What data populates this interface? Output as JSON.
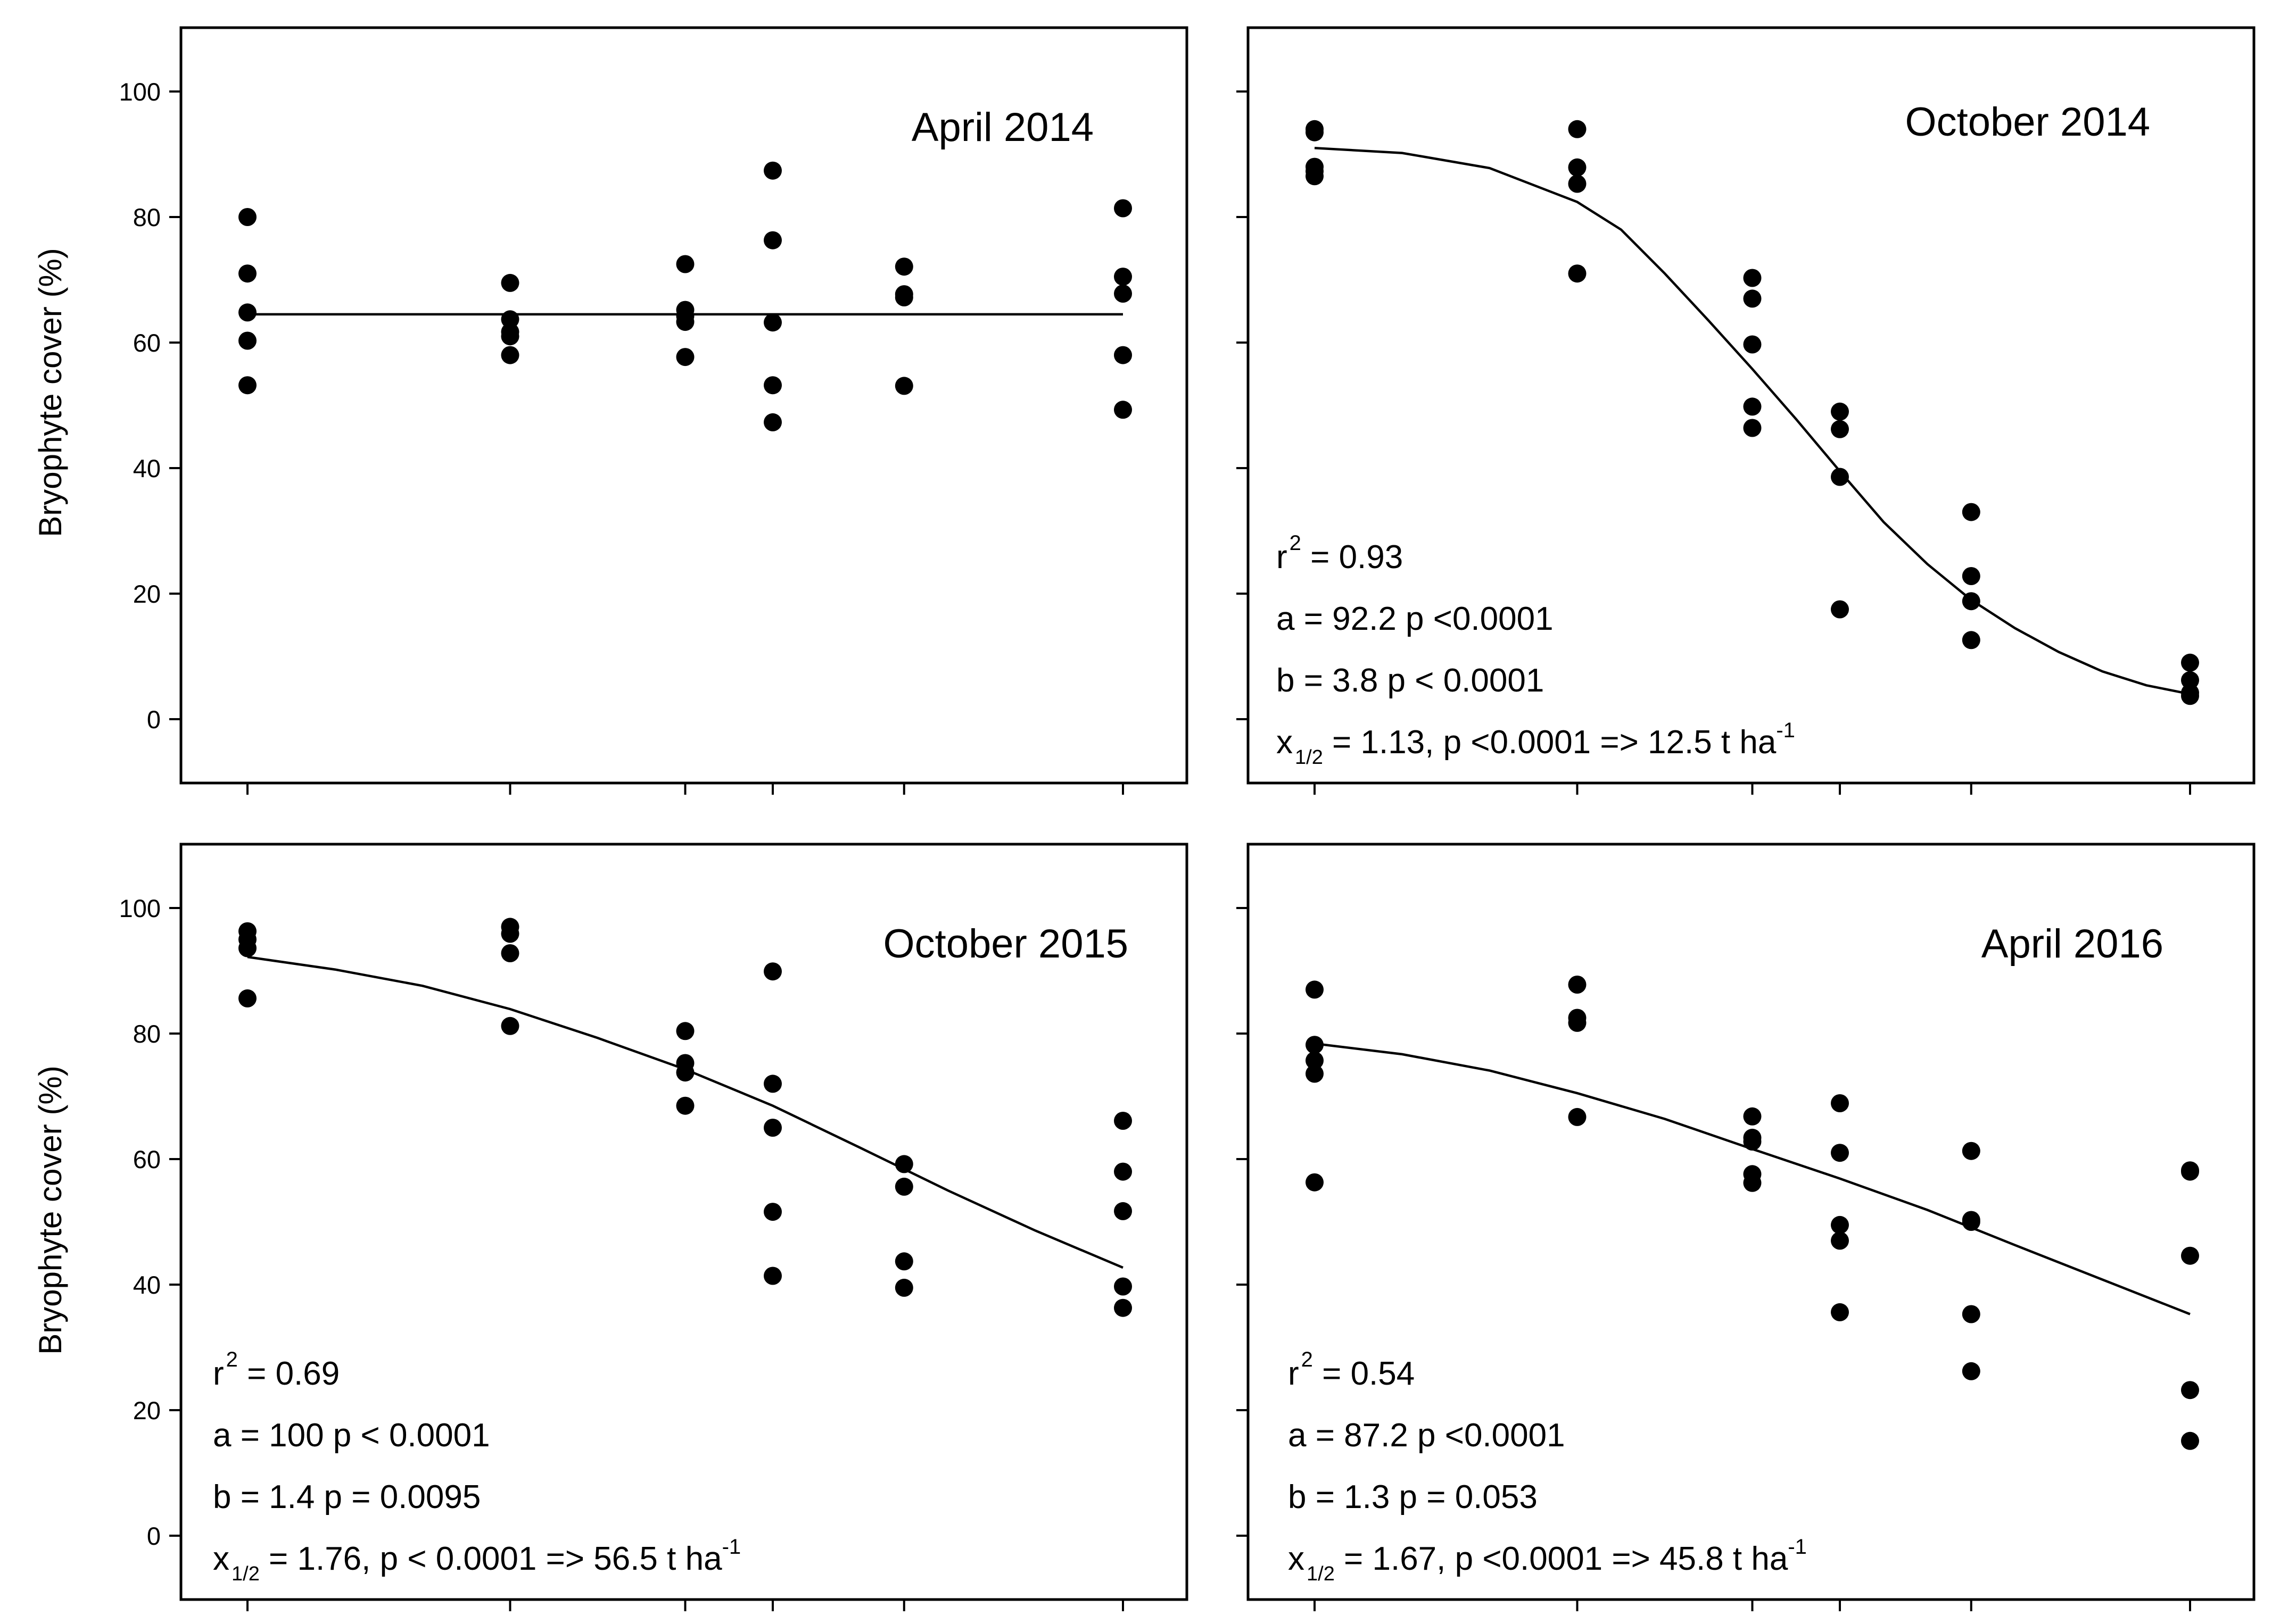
{
  "chart_data": [
    {
      "type": "scatter",
      "title": "April 2014",
      "ylabel": "Bryophyte cover (%)",
      "xlabel": "",
      "ylim": [
        -10,
        110
      ],
      "yticks": [
        "0",
        "20",
        "40",
        "60",
        "80",
        "100"
      ],
      "grid": false,
      "stats": [],
      "points": [
        {
          "x": 0,
          "y": 80
        },
        {
          "x": 0,
          "y": 71
        },
        {
          "x": 0,
          "y": 64.8
        },
        {
          "x": 0,
          "y": 60.3
        },
        {
          "x": 0,
          "y": 53.2
        },
        {
          "x": 1.2,
          "y": 69.5
        },
        {
          "x": 1.2,
          "y": 63.7
        },
        {
          "x": 1.2,
          "y": 61.7
        },
        {
          "x": 1.2,
          "y": 61
        },
        {
          "x": 1.2,
          "y": 58
        },
        {
          "x": 2,
          "y": 72.5
        },
        {
          "x": 2,
          "y": 65.2
        },
        {
          "x": 2,
          "y": 64.2
        },
        {
          "x": 2,
          "y": 63.3
        },
        {
          "x": 2,
          "y": 57.7
        },
        {
          "x": 2.4,
          "y": 87.4
        },
        {
          "x": 2.4,
          "y": 76.3
        },
        {
          "x": 2.4,
          "y": 63.2
        },
        {
          "x": 2.4,
          "y": 53.2
        },
        {
          "x": 2.4,
          "y": 47.3
        },
        {
          "x": 3,
          "y": 72.1
        },
        {
          "x": 3,
          "y": 67.7
        },
        {
          "x": 3,
          "y": 67.2
        },
        {
          "x": 3,
          "y": 53.1
        },
        {
          "x": 4,
          "y": 81.4
        },
        {
          "x": 4,
          "y": 70.5
        },
        {
          "x": 4,
          "y": 67.8
        },
        {
          "x": 4,
          "y": 58
        },
        {
          "x": 4,
          "y": 49.3
        }
      ],
      "fit": [
        {
          "x": 0,
          "y": 64.5
        },
        {
          "x": 4,
          "y": 64.5
        }
      ]
    },
    {
      "type": "scatter",
      "title": "October 2014",
      "ylabel": "",
      "xlabel": "",
      "ylim": [
        -10,
        110
      ],
      "yticks": [],
      "grid": false,
      "stats": [
        {
          "pre": "r",
          "sup": "2",
          "post": " = 0.93"
        },
        {
          "pre": "a = 92.2   p <0.0001"
        },
        {
          "pre": "b = 3.8   p < 0.0001"
        },
        {
          "pre": "x",
          "sub": "1/2",
          "post": "  = 1.13, p <0.0001 => 12.5 t ha",
          "sup2": "-1"
        }
      ],
      "points": [
        {
          "x": 0,
          "y": 94
        },
        {
          "x": 0,
          "y": 93.5
        },
        {
          "x": 0,
          "y": 88
        },
        {
          "x": 0,
          "y": 87.3
        },
        {
          "x": 0,
          "y": 86.5
        },
        {
          "x": 1.2,
          "y": 94
        },
        {
          "x": 1.2,
          "y": 87.9
        },
        {
          "x": 1.2,
          "y": 85.3
        },
        {
          "x": 1.2,
          "y": 71
        },
        {
          "x": 2,
          "y": 70.3
        },
        {
          "x": 2,
          "y": 67
        },
        {
          "x": 2,
          "y": 59.7
        },
        {
          "x": 2,
          "y": 49.8
        },
        {
          "x": 2,
          "y": 46.4
        },
        {
          "x": 2.4,
          "y": 49
        },
        {
          "x": 2.4,
          "y": 46.2
        },
        {
          "x": 2.4,
          "y": 38.6
        },
        {
          "x": 2.4,
          "y": 17.5
        },
        {
          "x": 3,
          "y": 33
        },
        {
          "x": 3,
          "y": 22.8
        },
        {
          "x": 3,
          "y": 18.8
        },
        {
          "x": 3,
          "y": 12.6
        },
        {
          "x": 4,
          "y": 9
        },
        {
          "x": 4,
          "y": 6.2
        },
        {
          "x": 4,
          "y": 4.2
        },
        {
          "x": 4,
          "y": 3.7
        }
      ],
      "fit": [
        {
          "x": 0,
          "y": 91
        },
        {
          "x": 0.4,
          "y": 90.2
        },
        {
          "x": 0.8,
          "y": 87.8
        },
        {
          "x": 1.2,
          "y": 82.4
        },
        {
          "x": 1.4,
          "y": 78
        },
        {
          "x": 1.6,
          "y": 71
        },
        {
          "x": 1.8,
          "y": 63.5
        },
        {
          "x": 2,
          "y": 55.8
        },
        {
          "x": 2.2,
          "y": 47.8
        },
        {
          "x": 2.4,
          "y": 39.5
        },
        {
          "x": 2.6,
          "y": 31.4
        },
        {
          "x": 2.8,
          "y": 24.7
        },
        {
          "x": 3,
          "y": 19
        },
        {
          "x": 3.2,
          "y": 14.5
        },
        {
          "x": 3.4,
          "y": 10.7
        },
        {
          "x": 3.6,
          "y": 7.6
        },
        {
          "x": 3.8,
          "y": 5.4
        },
        {
          "x": 4,
          "y": 4
        }
      ]
    },
    {
      "type": "scatter",
      "title": "October 2015",
      "ylabel": "Bryophyte cover (%)",
      "xlabel": "",
      "ylim": [
        -10,
        110
      ],
      "yticks": [
        "0",
        "20",
        "40",
        "60",
        "80",
        "100"
      ],
      "grid": false,
      "stats": [
        {
          "pre": "r",
          "sup": "2",
          "post": " = 0.69"
        },
        {
          "pre": "a = 100  p < 0.0001"
        },
        {
          "pre": "b  = 1.4  p = 0.0095"
        },
        {
          "pre": "x",
          "sub": "1/2",
          "post": " = 1.76, p < 0.0001 => 56.5 t ha",
          "sup2": "-1"
        }
      ],
      "points": [
        {
          "x": 0,
          "y": 96.3
        },
        {
          "x": 0,
          "y": 95
        },
        {
          "x": 0,
          "y": 93.6
        },
        {
          "x": 0,
          "y": 85.6
        },
        {
          "x": 1.2,
          "y": 97
        },
        {
          "x": 1.2,
          "y": 95.9
        },
        {
          "x": 1.2,
          "y": 92.8
        },
        {
          "x": 1.2,
          "y": 81.2
        },
        {
          "x": 2,
          "y": 80.4
        },
        {
          "x": 2,
          "y": 75.3
        },
        {
          "x": 2,
          "y": 73.8
        },
        {
          "x": 2,
          "y": 68.5
        },
        {
          "x": 2.4,
          "y": 89.9
        },
        {
          "x": 2.4,
          "y": 72
        },
        {
          "x": 2.4,
          "y": 65
        },
        {
          "x": 2.4,
          "y": 51.6
        },
        {
          "x": 2.4,
          "y": 41.4
        },
        {
          "x": 3,
          "y": 59.2
        },
        {
          "x": 3,
          "y": 55.6
        },
        {
          "x": 3,
          "y": 43.7
        },
        {
          "x": 3,
          "y": 39.5
        },
        {
          "x": 4,
          "y": 66.1
        },
        {
          "x": 4,
          "y": 58
        },
        {
          "x": 4,
          "y": 51.7
        },
        {
          "x": 4,
          "y": 39.7
        },
        {
          "x": 4,
          "y": 36.3
        }
      ],
      "fit": [
        {
          "x": 0,
          "y": 92.2
        },
        {
          "x": 0.4,
          "y": 90.2
        },
        {
          "x": 0.8,
          "y": 87.6
        },
        {
          "x": 1.2,
          "y": 83.9
        },
        {
          "x": 1.6,
          "y": 79.3
        },
        {
          "x": 2,
          "y": 74.3
        },
        {
          "x": 2.4,
          "y": 68.5
        },
        {
          "x": 2.8,
          "y": 61.8
        },
        {
          "x": 3.2,
          "y": 55
        },
        {
          "x": 3.6,
          "y": 48.6
        },
        {
          "x": 4,
          "y": 42.7
        }
      ]
    },
    {
      "type": "scatter",
      "title": "April 2016",
      "ylabel": "",
      "xlabel": "",
      "ylim": [
        -10,
        110
      ],
      "yticks": [],
      "grid": false,
      "stats": [
        {
          "pre": "r",
          "sup": "2",
          "post": " = 0.54"
        },
        {
          "pre": "a = 87.2  p <0.0001"
        },
        {
          "pre": "b  = 1.3 p = 0.053"
        },
        {
          "pre": "x",
          "sub": "1/2",
          "post": " = 1.67, p <0.0001 => 45.8 t ha",
          "sup2": "-1"
        }
      ],
      "points": [
        {
          "x": 0,
          "y": 87
        },
        {
          "x": 0,
          "y": 78.2
        },
        {
          "x": 0,
          "y": 75.7
        },
        {
          "x": 0,
          "y": 73.6
        },
        {
          "x": 0,
          "y": 56.3
        },
        {
          "x": 1.2,
          "y": 87.8
        },
        {
          "x": 1.2,
          "y": 82.5
        },
        {
          "x": 1.2,
          "y": 81.7
        },
        {
          "x": 1.2,
          "y": 66.7
        },
        {
          "x": 2,
          "y": 66.8
        },
        {
          "x": 2,
          "y": 63.4
        },
        {
          "x": 2,
          "y": 62.8
        },
        {
          "x": 2,
          "y": 57.6
        },
        {
          "x": 2,
          "y": 56.2
        },
        {
          "x": 2.4,
          "y": 68.9
        },
        {
          "x": 2.4,
          "y": 61
        },
        {
          "x": 2.4,
          "y": 49.5
        },
        {
          "x": 2.4,
          "y": 47
        },
        {
          "x": 2.4,
          "y": 35.6
        },
        {
          "x": 3,
          "y": 61.3
        },
        {
          "x": 3,
          "y": 50.3
        },
        {
          "x": 3,
          "y": 50
        },
        {
          "x": 3,
          "y": 35.3
        },
        {
          "x": 3,
          "y": 26.2
        },
        {
          "x": 4,
          "y": 58.2
        },
        {
          "x": 4,
          "y": 58
        },
        {
          "x": 4,
          "y": 44.6
        },
        {
          "x": 4,
          "y": 23.2
        },
        {
          "x": 4,
          "y": 15.1
        }
      ],
      "fit": [
        {
          "x": 0,
          "y": 78.4
        },
        {
          "x": 0.4,
          "y": 76.7
        },
        {
          "x": 0.8,
          "y": 74.1
        },
        {
          "x": 1.2,
          "y": 70.5
        },
        {
          "x": 1.6,
          "y": 66.4
        },
        {
          "x": 2,
          "y": 61.6
        },
        {
          "x": 2.4,
          "y": 56.9
        },
        {
          "x": 2.8,
          "y": 51.9
        },
        {
          "x": 3.2,
          "y": 46.3
        },
        {
          "x": 3.6,
          "y": 40.8
        },
        {
          "x": 4,
          "y": 35.3
        }
      ]
    }
  ]
}
